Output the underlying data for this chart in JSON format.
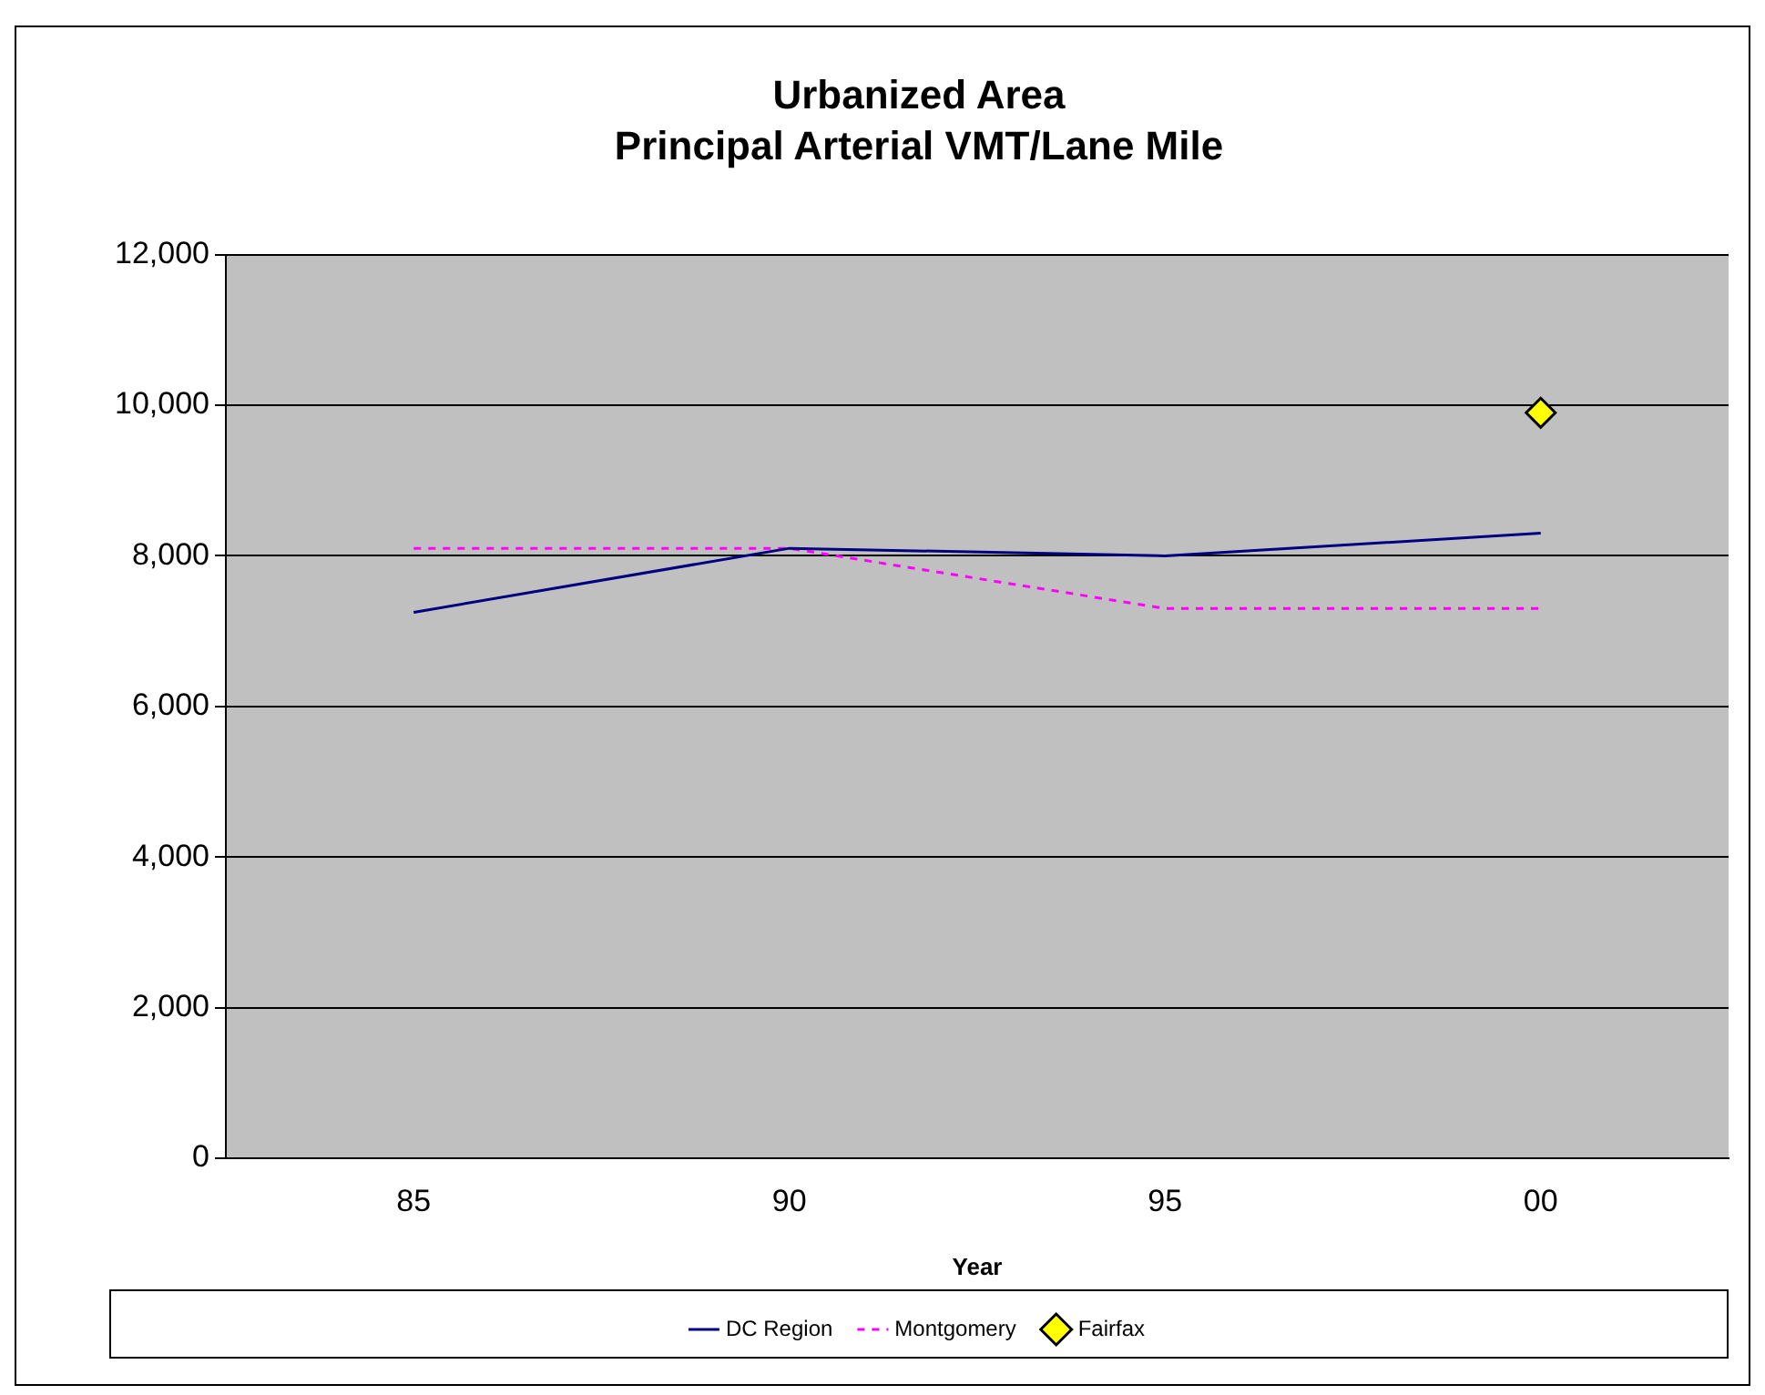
{
  "chart_data": {
    "type": "line",
    "title": "Urbanized Area",
    "subtitle": "Principal Arterial VMT/Lane Mile",
    "xlabel": "Year",
    "categories": [
      "85",
      "90",
      "95",
      "00"
    ],
    "series": [
      {
        "name": "DC Region",
        "color": "#000080",
        "values": [
          7250,
          8100,
          8000,
          8300
        ],
        "marker": "none",
        "line_style": "solid"
      },
      {
        "name": "Montgomery",
        "color": "#ff00ff",
        "values": [
          8100,
          8100,
          7300,
          7300
        ],
        "marker": "none",
        "line_style": "dashed"
      },
      {
        "name": "Fairfax",
        "type": "scatter",
        "color": "#ffff00",
        "values": [
          null,
          null,
          null,
          9900
        ],
        "marker": "diamond"
      }
    ],
    "ylim": [
      0,
      12000
    ],
    "yticks": [
      0,
      {
        "value": 2000,
        "label": "2,000"
      },
      {
        "value": 4000,
        "label": "4,000"
      },
      {
        "value": 6000,
        "label": "6,000"
      },
      {
        "value": 8000,
        "label": "8,000"
      },
      {
        "value": 10000,
        "label": "10,000"
      },
      {
        "value": 12000,
        "label": "12,000"
      }
    ],
    "grid": "y",
    "legend": "bottom"
  }
}
